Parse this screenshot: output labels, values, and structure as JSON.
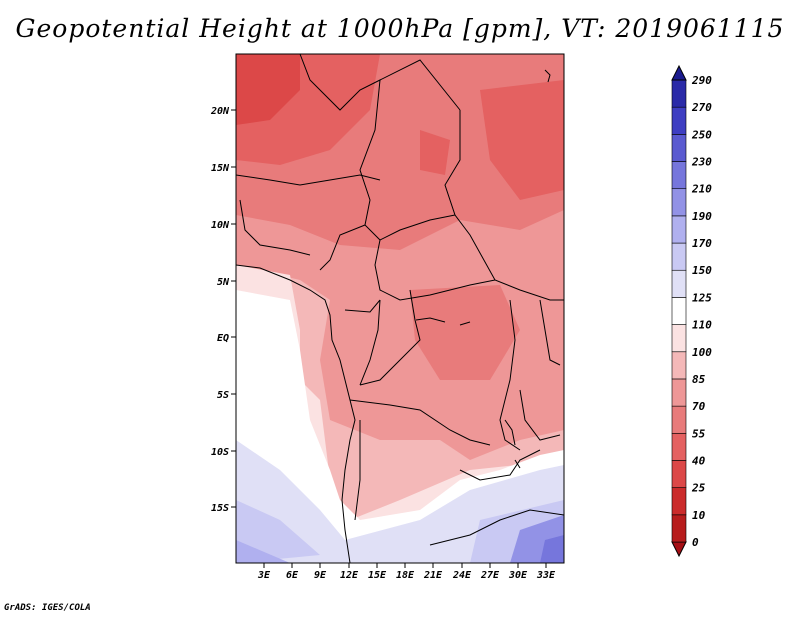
{
  "title": "Geopotential Height at 1000hPa [gpm], VT: 2019061115",
  "footer": "GrADS: IGES/COLA",
  "map": {
    "lat_labels": [
      "20N",
      "15N",
      "10N",
      "5N",
      "EQ",
      "5S",
      "10S",
      "15S"
    ],
    "lon_labels": [
      "3E",
      "6E",
      "9E",
      "12E",
      "15E",
      "18E",
      "21E",
      "24E",
      "27E",
      "30E",
      "33E"
    ],
    "lat_range": [
      -20,
      24.5
    ],
    "lon_range": [
      0,
      34.5
    ]
  },
  "colorbar": {
    "levels": [
      "0",
      "10",
      "25",
      "40",
      "55",
      "70",
      "85",
      "100",
      "110",
      "125",
      "150",
      "170",
      "190",
      "210",
      "230",
      "250",
      "270",
      "290"
    ],
    "colors": [
      "#a50f15",
      "#b71c1c",
      "#cb2b2b",
      "#dc4848",
      "#e46161",
      "#e87b7b",
      "#ee9797",
      "#f4b8b8",
      "#fbe2e2",
      "#ffffff",
      "#e0e0f6",
      "#c9c9f3",
      "#b0b0ef",
      "#9292e6",
      "#7676dc",
      "#5a5ad0",
      "#3e3ec2",
      "#2a2aa8",
      "#1b1b8e"
    ]
  }
}
